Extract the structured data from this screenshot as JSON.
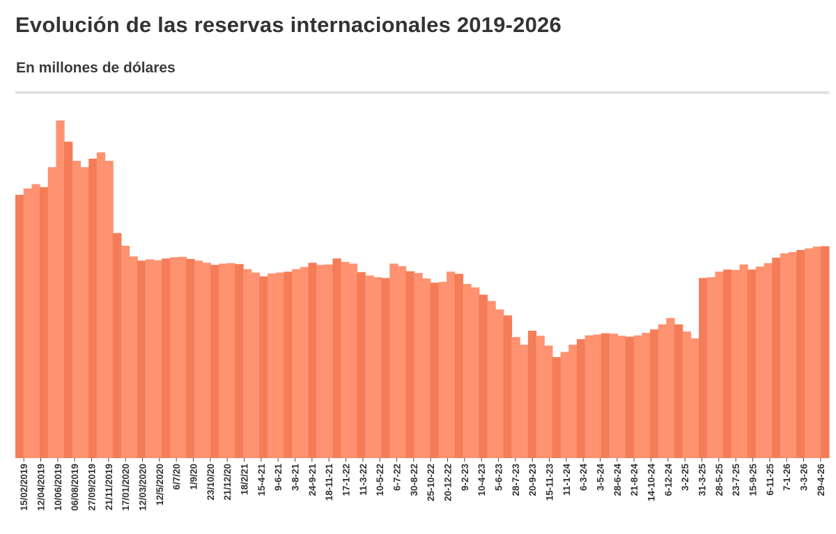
{
  "header": {
    "title": "Evolución de las reservas internacionales 2019-2026",
    "subtitle": "En millones de dólares"
  },
  "colors": {
    "bar": "#ff9270",
    "bar_dark": "#f4714a",
    "divider": "#e2e2e2",
    "text": "#333333"
  },
  "chart_data": {
    "type": "bar",
    "title": "Evolución de las reservas internacionales 2019-2026",
    "subtitle": "En millones de dólares",
    "xlabel": "",
    "ylabel": "",
    "grid": false,
    "legend": "none",
    "tick_labels": [
      "15/02/2019",
      "12/04/2019",
      "10/06/2019",
      "06/08/2019",
      "27/09/2019",
      "21/11/2019",
      "17/01/2020",
      "12/03/2020",
      "12/5/2020",
      "6/7/20",
      "1/9/20",
      "23/10/20",
      "21/12/20",
      "18/2/21",
      "15-4-21",
      "9-6-21",
      "3-8-21",
      "24-9-21",
      "18-11-21",
      "17-1-22",
      "11-3-22",
      "10-5-22",
      "6-7-22",
      "30-8-22",
      "25-10-22",
      "20-12-22",
      "9-2-23",
      "10-4-23",
      "5-6-23",
      "28-7-23",
      "20-9-23",
      "15-11-23",
      "11-1-24",
      "6-3-24",
      "3-5-24",
      "28-6-24",
      "21-8-24",
      "14-10-24",
      "6-12-24",
      "3-2-25",
      "31-3-25",
      "28-5-25",
      "23-7-25",
      "15-9-25",
      "6-11-25",
      "7-1-26",
      "3-3-26",
      "29-4-26"
    ],
    "ylim": [
      0,
      80000
    ],
    "series": [
      {
        "values": [
          62000,
          63500,
          64500,
          63800,
          68500,
          79500,
          74500,
          70000,
          68500,
          70500,
          72000,
          70000,
          53000,
          50000,
          47500,
          46500,
          46800,
          46600,
          47000,
          47300,
          47400,
          46900,
          46500,
          46000,
          45500,
          45800,
          45900,
          45700,
          44500,
          43700,
          42800,
          43500,
          43700,
          43900,
          44500,
          45000,
          46000,
          45500,
          45600,
          47000,
          46200,
          45800,
          43800,
          43000,
          42600,
          42400,
          45800,
          45200,
          44000,
          43600,
          42300,
          41300,
          41500,
          43900,
          43400,
          41000,
          40200,
          38500,
          37000,
          35000,
          33600,
          28500,
          26700,
          30000,
          28800,
          26500,
          23800,
          25000,
          26700,
          28000,
          28900,
          29100,
          29400,
          29300,
          28800,
          28600,
          28900,
          29500,
          30300,
          31500,
          33000,
          31500,
          29800,
          28200,
          42400,
          42600,
          43900,
          44400,
          44300,
          45600,
          44400,
          45100,
          45900,
          47200,
          48200,
          48500,
          49000,
          49400,
          49800,
          49900
        ]
      }
    ]
  }
}
